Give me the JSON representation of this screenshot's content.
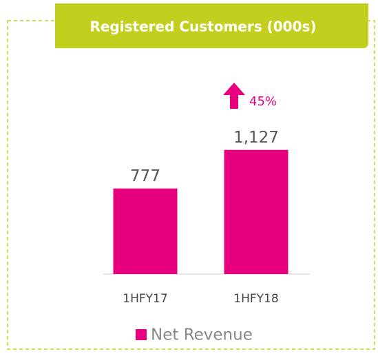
{
  "chart_data": {
    "type": "bar",
    "title": "Registered Customers (000s)",
    "categories": [
      "1HFY17",
      "1HFY18"
    ],
    "values": [
      777,
      1127
    ],
    "value_labels": [
      "777",
      "1,127"
    ],
    "color": "#e6007e",
    "ylim": [
      0,
      1400
    ],
    "annotation": "45%",
    "series_name": "Net Revenue"
  }
}
